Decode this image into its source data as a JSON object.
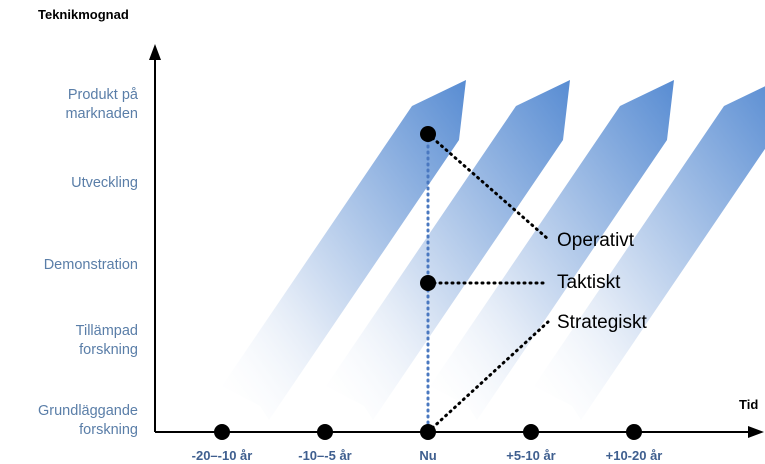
{
  "title": "Teknikmognad",
  "x_axis_label": "Tid",
  "y_levels": [
    {
      "line1": "Produkt på",
      "line2": "marknaden"
    },
    {
      "line1": "Utveckling",
      "line2": ""
    },
    {
      "line1": "Demonstration",
      "line2": ""
    },
    {
      "line1": "Tillämpad",
      "line2": "forskning"
    },
    {
      "line1": "Grundläggande",
      "line2": "forskning"
    }
  ],
  "x_ticks": [
    "-20–-10 år",
    "-10–-5 år",
    "Nu",
    "+5-10 år",
    "+10-20 år"
  ],
  "callouts": [
    "Operativt",
    "Taktiskt",
    "Strategiskt"
  ],
  "colors": {
    "arrow_top": "#4f86d0",
    "axis": "#000000",
    "label_blue": "#5a7ea8",
    "dotted_now": "#4a78c0"
  }
}
